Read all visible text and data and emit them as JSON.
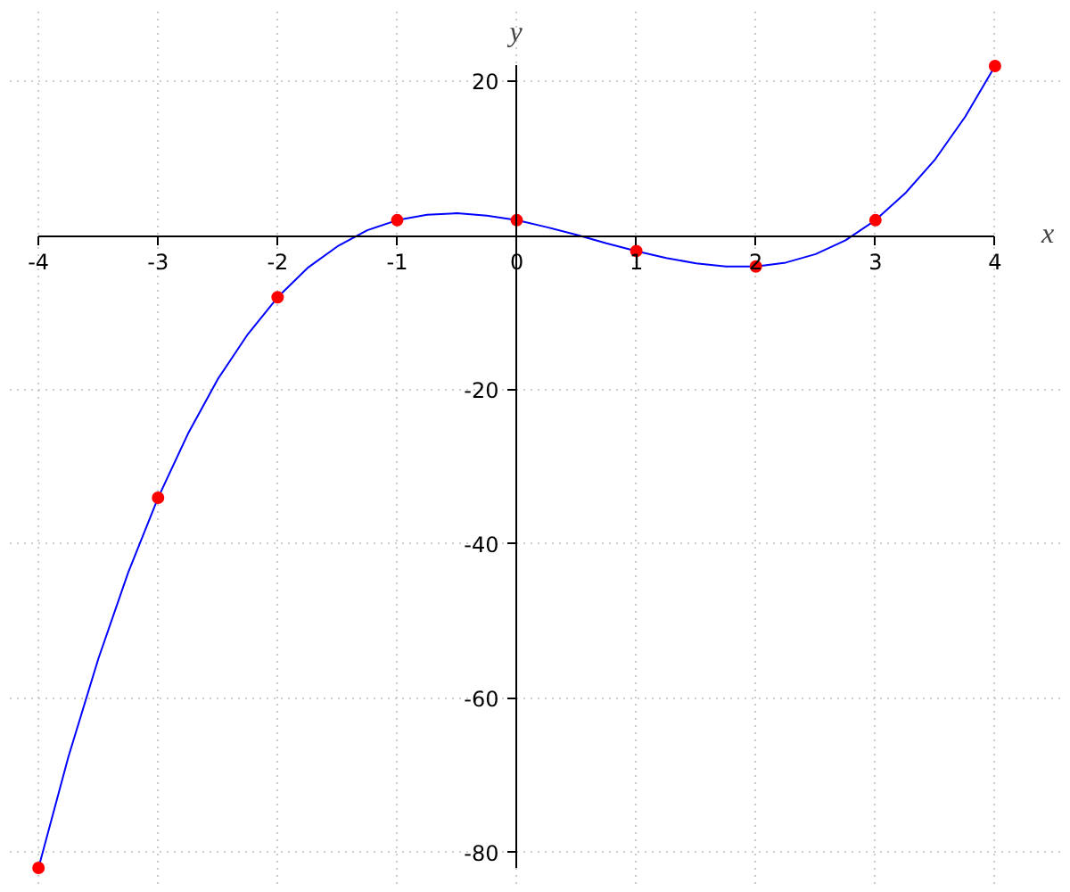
{
  "chart_data": {
    "type": "line",
    "xlabel": "x",
    "ylabel": "y",
    "xlim": [
      -4,
      4
    ],
    "ylim": [
      -82,
      22
    ],
    "xticks": [
      -4,
      -3,
      -2,
      -1,
      0,
      1,
      2,
      3,
      4
    ],
    "yticks": [
      -80,
      -60,
      -40,
      -20,
      20
    ],
    "grid": true,
    "series": [
      {
        "color": "#0000ff",
        "marker": "none",
        "line_style": "solid",
        "x": [
          -4,
          -3.75,
          -3.5,
          -3.25,
          -3,
          -2.75,
          -2.5,
          -2.25,
          -2,
          -1.75,
          -1.5,
          -1.25,
          -1,
          -0.75,
          -0.5,
          -0.25,
          0,
          0.25,
          0.5,
          0.75,
          1,
          1.25,
          1.5,
          1.75,
          2,
          2.25,
          2.5,
          2.75,
          3,
          3.25,
          3.5,
          3.75,
          4
        ],
        "values": [
          -82,
          -67.6,
          -54.9,
          -43.7,
          -34,
          -25.7,
          -18.6,
          -12.8,
          -8,
          -4.2,
          -1.4,
          0.7,
          2,
          2.7,
          2.9,
          2.6,
          2,
          1.1,
          0.1,
          -1,
          -2,
          -2.9,
          -3.6,
          -4,
          -4,
          -3.5,
          -2.4,
          -0.6,
          2,
          5.5,
          9.9,
          15.4,
          22
        ]
      },
      {
        "type": "scatter",
        "color": "#ff0000",
        "marker": "circle",
        "x": [
          -4,
          -3,
          -2,
          -1,
          0,
          1,
          2,
          3,
          4
        ],
        "values": [
          -82,
          -34,
          -8,
          2,
          2,
          -2,
          -4,
          2,
          22
        ]
      }
    ]
  }
}
